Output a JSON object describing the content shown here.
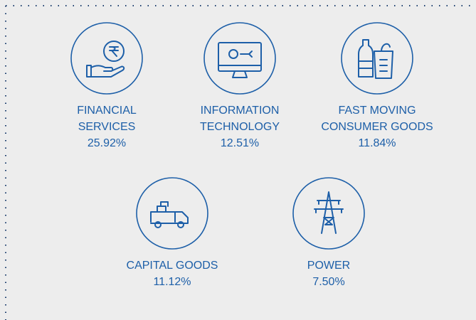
{
  "sectors": [
    {
      "label": [
        "FINANCIAL",
        "SERVICES"
      ],
      "share": "25.92%"
    },
    {
      "label": [
        "INFORMATION",
        "TECHNOLOGY"
      ],
      "share": "12.51%"
    },
    {
      "label": [
        "FAST MOVING",
        "CONSUMER GOODS"
      ],
      "share": "11.84%"
    },
    {
      "label": [
        "CAPITAL GOODS"
      ],
      "share": "11.12%"
    },
    {
      "label": [
        "POWER"
      ],
      "share": "7.50%"
    }
  ]
}
